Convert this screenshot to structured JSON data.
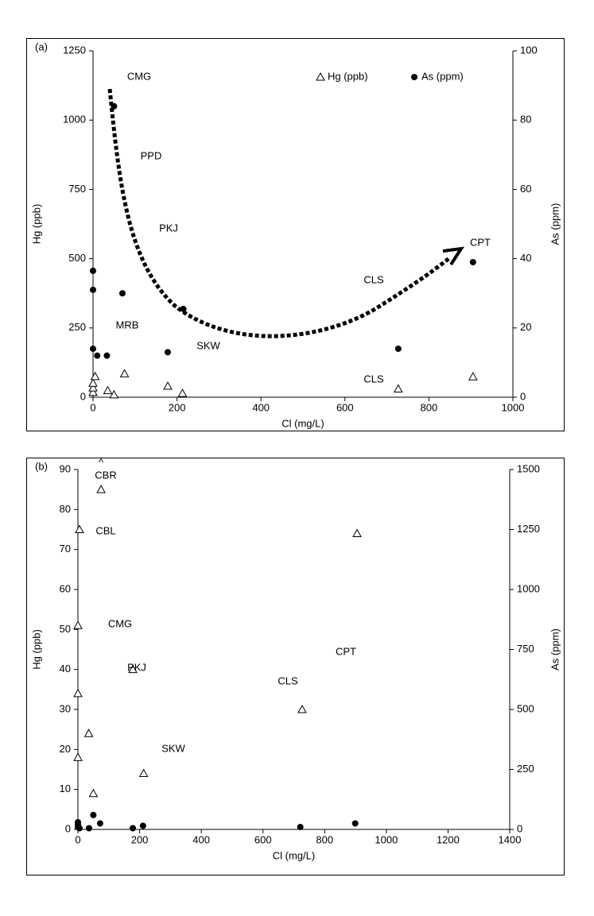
{
  "chart_data": [
    {
      "type": "scatter",
      "panel_label": "(a)",
      "x_label": "Cl (mg/L)",
      "y_label": "Hg (ppb)",
      "y2_label": "As (ppm)",
      "xlim": [
        0,
        1000
      ],
      "xticks": [
        0,
        200,
        400,
        600,
        800,
        1000
      ],
      "ylim": [
        0,
        1250
      ],
      "yticks": [
        0,
        250,
        500,
        750,
        1000,
        1250
      ],
      "y2lim": [
        0,
        100
      ],
      "y2ticks": [
        0,
        20,
        40,
        60,
        80,
        100
      ],
      "legend": true,
      "series": [
        {
          "name": "Hg (ppb)",
          "marker": "triangle",
          "color": "#000000",
          "x": [
            0,
            0,
            0,
            5,
            35,
            50,
            75,
            178,
            213,
            727,
            905
          ],
          "values": [
            18,
            34,
            51,
            75,
            24,
            9,
            85,
            40,
            14,
            30,
            74
          ]
        },
        {
          "name": "As (ppm)",
          "marker": "circle",
          "color": "#000000",
          "axis": "y2",
          "x": [
            0,
            0,
            0,
            10,
            33,
            50,
            70,
            178,
            215,
            727,
            905
          ],
          "values": [
            36.5,
            31,
            14,
            12,
            12,
            84,
            30,
            13,
            25.5,
            14,
            39
          ]
        }
      ],
      "annotations": [
        "CMG",
        "PPD",
        "PKJ",
        "CPT",
        "CLS",
        "MRB",
        "SKW",
        "CLS"
      ]
    },
    {
      "type": "scatter",
      "panel_label": "(b)",
      "x_label": "Cl (mg/L)",
      "y_label": "Hg (ppb)",
      "y2_label": "As (ppm)",
      "xlim": [
        0,
        1400
      ],
      "xticks": [
        0,
        200,
        400,
        600,
        800,
        1000,
        1200,
        1400
      ],
      "ylim": [
        0,
        90
      ],
      "yticks": [
        0,
        10,
        20,
        30,
        40,
        50,
        60,
        70,
        80,
        90
      ],
      "y2lim": [
        0,
        1500
      ],
      "y2ticks": [
        0,
        250,
        500,
        750,
        1000,
        1250,
        1500
      ],
      "legend": false,
      "series": [
        {
          "marker": "triangle",
          "color": "#000000",
          "x": [
            0,
            0,
            0,
            5,
            35,
            50,
            75,
            178,
            213,
            727,
            905
          ],
          "values": [
            18,
            34,
            51,
            75,
            24,
            9,
            85,
            40,
            14,
            30,
            74
          ]
        },
        {
          "marker": "circle",
          "color": "#000000",
          "axis": "y2",
          "x": [
            0,
            0,
            0,
            5,
            36,
            50,
            72,
            178,
            211,
            721,
            899
          ],
          "values": [
            30,
            20,
            10,
            5,
            5,
            60,
            25,
            5,
            15,
            10,
            25
          ]
        }
      ],
      "annotations": [
        "^",
        "CBR",
        "CBL",
        "CMG",
        "PKJ",
        "CPT",
        "CLS",
        "SKW"
      ]
    }
  ]
}
